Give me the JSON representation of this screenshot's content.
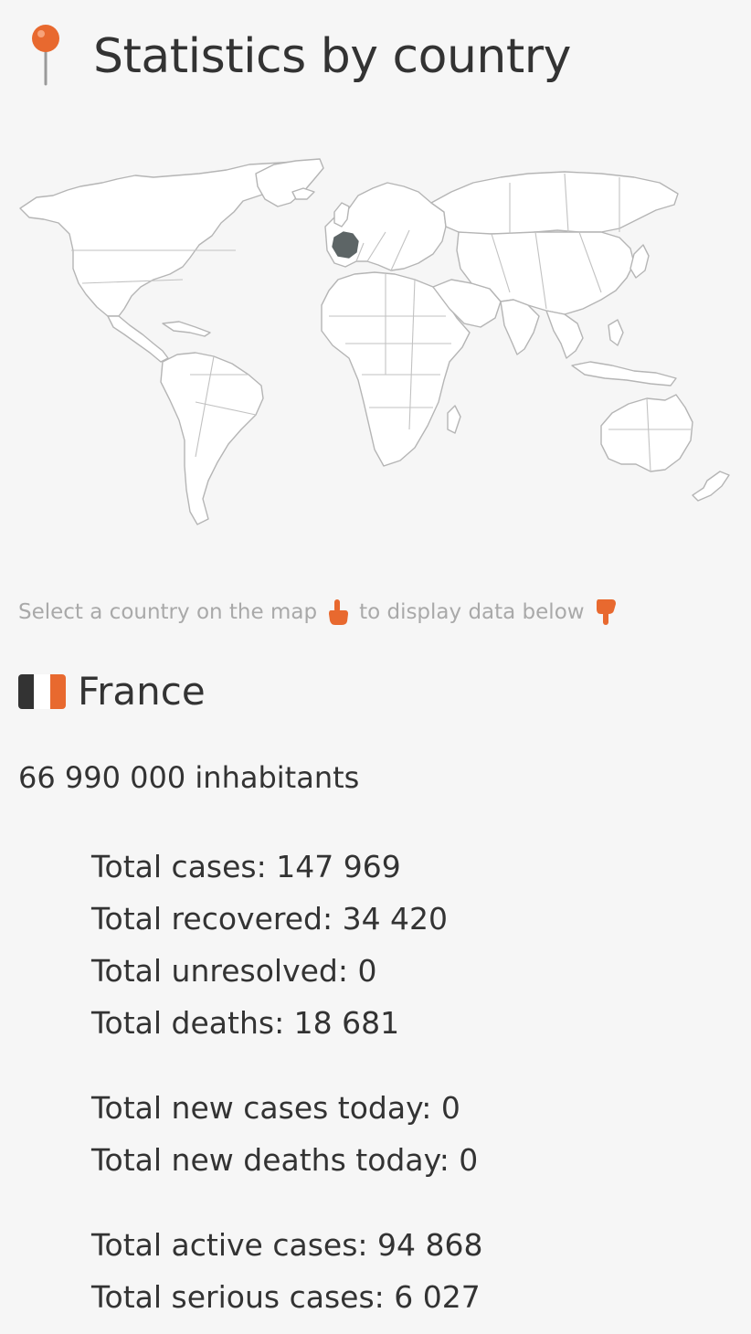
{
  "header": {
    "title": "Statistics by country",
    "icon": "round-pushpin-icon",
    "icon_color": "#e8692f"
  },
  "map": {
    "selected_country": "France",
    "selected_color": "#5d6566",
    "country_fill": "#ffffff",
    "border_color": "#b5b5b5"
  },
  "hint": {
    "text_before": "Select a country on the map",
    "text_after": "to display data below",
    "icon_before": "pointing-hand-icon",
    "icon_after": "pointing-down-hand-icon",
    "icon_color": "#e8692f"
  },
  "country": {
    "flag_colors": [
      "#333333",
      "#ffffff",
      "#e8692f"
    ],
    "name": "France",
    "population": "66 990 000 inhabitants"
  },
  "stats": {
    "total_cases": "Total cases: 147 969",
    "total_recovered": "Total recovered: 34 420",
    "total_unresolved": "Total unresolved: 0",
    "total_deaths": "Total deaths: 18 681",
    "new_cases_today": "Total new cases today: 0",
    "new_deaths_today": "Total new deaths today: 0",
    "active_cases": "Total active cases: 94 868",
    "serious_cases": "Total serious cases: 6 027"
  }
}
